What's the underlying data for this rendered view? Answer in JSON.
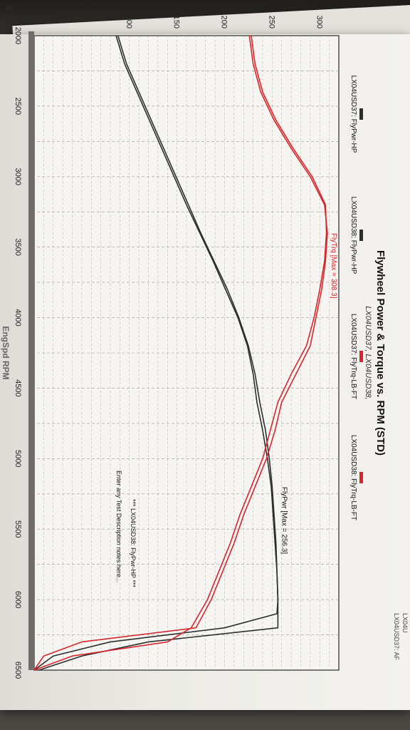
{
  "chart_data": {
    "type": "line",
    "title": "Flywheel Power & Torque vs. RPM (STD)",
    "subtitle": "LX04USD37, LX04USD38,",
    "xlabel": "EngSpd RPM",
    "ylabel": "",
    "xlim": [
      2000,
      6500
    ],
    "ylim": [
      0,
      320
    ],
    "x_ticks": [
      "2000",
      "2500",
      "3000",
      "3500",
      "4000",
      "4500",
      "5000",
      "5500",
      "6000",
      "6500"
    ],
    "y_ticks": [
      "100",
      "150",
      "200",
      "250",
      "300"
    ],
    "grid": true,
    "legend_position": "top",
    "series": [
      {
        "name": "LX04USD37: FlyPwr-HP",
        "color": "#2a2f2e",
        "x": [
          2000,
          2200,
          2400,
          2600,
          2800,
          3000,
          3200,
          3400,
          3600,
          3800,
          4000,
          4200,
          4400,
          4600,
          4800,
          5000,
          5200,
          5400,
          5600,
          5800,
          6000,
          6100,
          6200,
          6300,
          6400,
          6500
        ],
        "y": [
          86,
          95,
          108,
          121,
          134,
          147,
          160,
          174,
          188,
          201,
          214,
          224,
          230,
          234,
          240,
          245,
          249,
          251,
          253,
          255,
          256,
          256,
          256,
          120,
          50,
          5
        ]
      },
      {
        "name": "LX04USD38: FlyPwr-HP",
        "color": "#2a2f2e",
        "x": [
          2000,
          2200,
          2400,
          2600,
          2800,
          3000,
          3200,
          3400,
          3600,
          3800,
          4000,
          4200,
          4400,
          4600,
          4800,
          5000,
          5200,
          5400,
          5600,
          5800,
          6000,
          6100,
          6200,
          6300,
          6400,
          6500
        ],
        "y": [
          88,
          97,
          110,
          123,
          136,
          149,
          162,
          175,
          189,
          203,
          215,
          225,
          232,
          237,
          243,
          247,
          250,
          252,
          254,
          255,
          256,
          255,
          200,
          80,
          20,
          0
        ]
      },
      {
        "name": "LX04USD37: FlyTrq-LB-FT",
        "color": "#d8262c",
        "x": [
          2000,
          2200,
          2400,
          2600,
          2800,
          3000,
          3200,
          3400,
          3600,
          3800,
          4000,
          4200,
          4400,
          4600,
          4800,
          5000,
          5200,
          5400,
          5600,
          5800,
          6000,
          6200,
          6300,
          6400,
          6500
        ],
        "y": [
          226,
          230,
          238,
          252,
          270,
          290,
          305,
          308,
          306,
          302,
          296,
          290,
          275,
          260,
          253,
          244,
          232,
          220,
          210,
          198,
          186,
          170,
          50,
          10,
          0
        ]
      },
      {
        "name": "LX04USD38: FlyTrq-LB-FT",
        "color": "#d8262c",
        "x": [
          2000,
          2200,
          2400,
          2600,
          2800,
          3000,
          3200,
          3400,
          3600,
          3800,
          4000,
          4200,
          4400,
          4600,
          4800,
          5000,
          5200,
          5400,
          5600,
          5800,
          6000,
          6200,
          6300,
          6400,
          6500
        ],
        "y": [
          228,
          232,
          240,
          254,
          272,
          292,
          306,
          307,
          305,
          300,
          294,
          286,
          270,
          256,
          248,
          240,
          228,
          216,
          206,
          194,
          182,
          165,
          140,
          40,
          0
        ]
      }
    ],
    "annotations": [
      {
        "text": "FlyTrq [Max = 308.3]",
        "x": 3400,
        "y": 308
      },
      {
        "text": "FlyPwr [Max = 256.3]",
        "x": 5200,
        "y": 256
      }
    ],
    "notes": [
      "*** LX04USD38: FlyPwr-HP ***",
      "Enter any Test Description notes here..."
    ]
  },
  "page": {
    "stub_left": "2",
    "stub_right_1": "LX04U",
    "stub_right_2": "LX04USD37: AF"
  }
}
